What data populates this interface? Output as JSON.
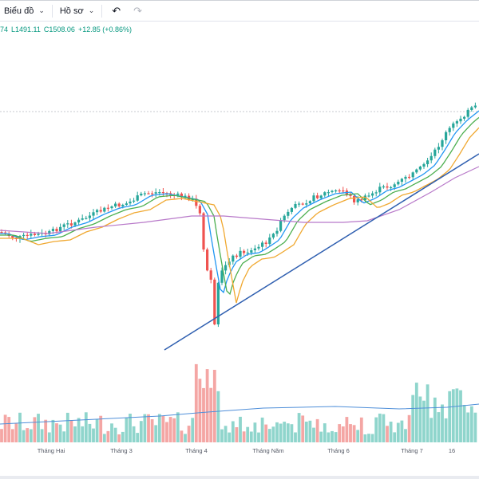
{
  "toolbar": {
    "chart_menu_label": "Biểu đồ",
    "profile_menu_label": "Hồ sơ",
    "undo_icon": "undo-icon",
    "redo_icon": "redo-icon"
  },
  "legend": {
    "open_partial": "74",
    "low": "L1491.11",
    "close": "C1508.06",
    "change": "+12.85 (+0.86%)"
  },
  "x_axis_labels": [
    "Tháng Hai",
    "Tháng 3",
    "Tháng 4",
    "Tháng Năm",
    "Tháng 6",
    "Tháng 7",
    "16"
  ],
  "colors": {
    "up": "#26a69a",
    "down": "#ef5350",
    "ma_fast": "#2196f3",
    "ma_mid": "#4caf50",
    "ma_orange": "#f0a830",
    "ma_slow": "#b879c9",
    "trendline": "#2f5fb0",
    "vol_up": "#8fd5cc",
    "vol_down": "#f4a6a4"
  },
  "chart_data": {
    "type": "candlestick",
    "title": "",
    "price_line": 1508.06
  }
}
